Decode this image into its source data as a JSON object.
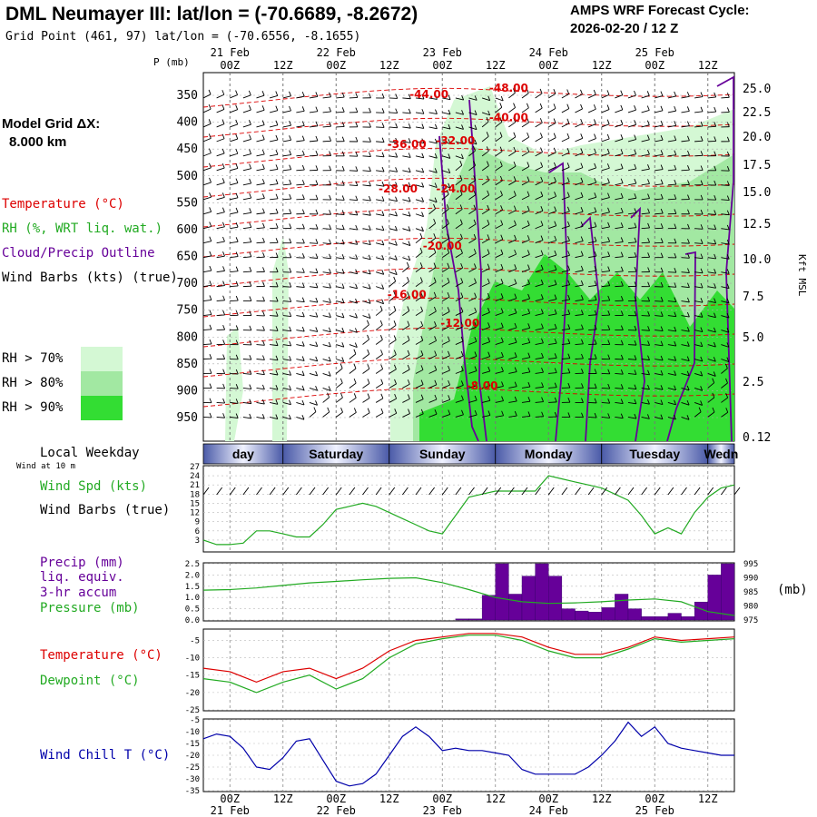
{
  "header": {
    "title": "DML Neumayer III:  lat/lon = (-70.6689, -8.2672)",
    "subtitle": "Grid Point (461, 97) lat/lon = (-70.6556, -8.1655)",
    "cycle_label": "AMPS WRF Forecast Cycle:",
    "cycle_value": "2026-02-20 / 12  Z"
  },
  "colors": {
    "temperature": "#dd0000",
    "rh": "#22aa22",
    "cloud": "#660099",
    "wind_chill": "#0000aa",
    "precip": "#660099",
    "rh70": "#d4f8d4",
    "rh80": "#a2e8a2",
    "rh90": "#33dd33"
  },
  "legend": {
    "model_grid": "Model Grid ΔX:",
    "model_grid_value": "8.000 km",
    "temperature": "Temperature (°C)",
    "rh": "RH (%, WRT liq. wat.)",
    "cloud": "Cloud/Precip Outline",
    "wind": "Wind Barbs (kts) (true)",
    "rh70": "RH > 70%",
    "rh80": "RH > 80%",
    "rh90": "RH > 90%",
    "local_weekday": "Local Weekday",
    "wind_10m": "Wind at 10 m",
    "wind_spd": "Wind Spd (kts)",
    "wind_barbs": "Wind Barbs (true)",
    "precip": "Precip (mm)",
    "liq_equiv": "liq. equiv.",
    "accum": "3-hr accum",
    "pressure": "Pressure (mb)",
    "temp2": "Temperature (°C)",
    "dewpoint": "Dewpoint (°C)",
    "wind_chill": "Wind Chill T (°C)",
    "pressure_unit": "(mb)"
  },
  "chart_data": [
    {
      "name": "upper-air cross-section",
      "type": "heatmap",
      "title": "DML Neumayer III:  lat/lon = (-70.6689, -8.2672)",
      "ylabel": "P (mb)",
      "ylabel_right": "Kft MSL",
      "time_range_hours": [
        -6,
        114
      ],
      "time_ticks": [
        "00Z",
        "12Z",
        "00Z",
        "12Z",
        "00Z",
        "12Z",
        "00Z",
        "12Z",
        "00Z",
        "12Z"
      ],
      "date_labels": [
        "21 Feb",
        "22 Feb",
        "23 Feb",
        "24 Feb",
        "25 Feb"
      ],
      "pressure_ticks": [
        "350",
        "400",
        "450",
        "500",
        "550",
        "600",
        "650",
        "700",
        "750",
        "800",
        "850",
        "900",
        "950"
      ],
      "height_ticks": [
        "25.0",
        "22.5",
        "20.0",
        "17.5",
        "15.0",
        "12.5",
        "10.0",
        "7.5",
        "5.0",
        "2.5",
        "0.12"
      ],
      "temperature_labels": [
        {
          "text": "-44.00",
          "t": 45,
          "p": 355
        },
        {
          "text": "-48.00",
          "t": 63,
          "p": 343
        },
        {
          "text": "-40.00",
          "t": 63,
          "p": 398
        },
        {
          "text": "-36.00",
          "t": 40,
          "p": 448
        },
        {
          "text": "-32.00",
          "t": 51,
          "p": 441
        },
        {
          "text": "-28.00",
          "t": 38,
          "p": 531
        },
        {
          "text": "-24.00",
          "t": 51,
          "p": 531
        },
        {
          "text": "-20.00",
          "t": 48,
          "p": 637
        },
        {
          "text": "-16.00",
          "t": 40,
          "p": 728
        },
        {
          "text": "-12.00",
          "t": 52,
          "p": 781
        },
        {
          "text": "-8.00",
          "t": 57,
          "p": 898
        }
      ]
    },
    {
      "name": "local weekday",
      "type": "table",
      "days": [
        "day",
        "Saturday",
        "Sunday",
        "Monday",
        "Tuesday",
        "Wedn"
      ]
    },
    {
      "name": "10 m wind speed",
      "type": "line",
      "ylabel": "Wind Spd (kts)",
      "ylim": [
        0,
        27
      ],
      "yticks": [
        "3",
        "6",
        "9",
        "12",
        "15",
        "18",
        "21",
        "24",
        "27"
      ],
      "x_hours": [
        -6,
        -3,
        0,
        3,
        6,
        9,
        12,
        15,
        18,
        21,
        24,
        27,
        30,
        33,
        36,
        39,
        42,
        45,
        48,
        51,
        54,
        57,
        60,
        63,
        66,
        69,
        72,
        75,
        78,
        81,
        84,
        87,
        90,
        93,
        96,
        99,
        102,
        105,
        108,
        111,
        114
      ],
      "values": [
        3,
        1.5,
        1.5,
        2,
        6,
        6,
        5,
        4,
        4,
        8,
        13,
        14,
        15,
        14,
        12,
        10,
        8,
        6,
        5,
        11,
        17,
        18,
        19,
        19,
        19,
        19,
        24,
        23,
        22,
        21,
        20,
        18,
        16,
        11,
        5,
        7,
        5,
        12,
        17,
        20,
        21
      ]
    },
    {
      "name": "precipitation and pressure",
      "type": "bar",
      "ylabel": "Precip (mm)",
      "ylim": [
        0,
        2.5
      ],
      "yticks": [
        "0.0",
        "0.5",
        "1.0",
        "1.5",
        "2.0",
        "2.5"
      ],
      "y2label": "(mb)",
      "y2lim": [
        975,
        995
      ],
      "y2ticks": [
        "975",
        "980",
        "985",
        "990",
        "995"
      ],
      "precip_bins": [
        {
          "t0": 51,
          "t1": 54,
          "value": 0.05
        },
        {
          "t0": 54,
          "t1": 57,
          "value": 0.05
        },
        {
          "t0": 57,
          "t1": 60,
          "value": 1.1
        },
        {
          "t0": 60,
          "t1": 63,
          "value": 2.5
        },
        {
          "t0": 63,
          "t1": 66,
          "value": 1.15
        },
        {
          "t0": 66,
          "t1": 69,
          "value": 1.95
        },
        {
          "t0": 69,
          "t1": 72,
          "value": 2.5
        },
        {
          "t0": 72,
          "t1": 75,
          "value": 1.95
        },
        {
          "t0": 75,
          "t1": 78,
          "value": 0.5
        },
        {
          "t0": 78,
          "t1": 81,
          "value": 0.4
        },
        {
          "t0": 81,
          "t1": 84,
          "value": 0.35
        },
        {
          "t0": 84,
          "t1": 87,
          "value": 0.55
        },
        {
          "t0": 87,
          "t1": 90,
          "value": 1.15
        },
        {
          "t0": 90,
          "t1": 93,
          "value": 0.5
        },
        {
          "t0": 93,
          "t1": 96,
          "value": 0.15
        },
        {
          "t0": 96,
          "t1": 99,
          "value": 0.15
        },
        {
          "t0": 99,
          "t1": 102,
          "value": 0.3
        },
        {
          "t0": 102,
          "t1": 105,
          "value": 0.15
        },
        {
          "t0": 105,
          "t1": 108,
          "value": 0.8
        },
        {
          "t0": 108,
          "t1": 111,
          "value": 2.0
        },
        {
          "t0": 111,
          "t1": 114,
          "value": 2.5
        }
      ],
      "pressure_x": [
        -6,
        0,
        6,
        12,
        18,
        24,
        30,
        36,
        42,
        48,
        54,
        60,
        66,
        72,
        78,
        84,
        90,
        96,
        102,
        108,
        114
      ],
      "pressure_values": [
        985.6,
        985.8,
        986.4,
        987.3,
        988.2,
        988.7,
        989.3,
        989.8,
        990.0,
        988.3,
        985.8,
        983.0,
        981.5,
        980.9,
        981.1,
        981.5,
        982.1,
        982.5,
        981.5,
        978.0,
        976.6
      ]
    },
    {
      "name": "temperature and dewpoint",
      "type": "line",
      "ylim": [
        -25,
        -2
      ],
      "yticks": [
        "-5",
        "-10",
        "-15",
        "-20",
        "-25"
      ],
      "x_hours": [
        -6,
        0,
        6,
        12,
        18,
        24,
        30,
        36,
        42,
        48,
        54,
        60,
        66,
        72,
        78,
        84,
        90,
        96,
        102,
        108,
        114
      ],
      "series": [
        {
          "name": "Temperature (°C)",
          "values": [
            -13,
            -14,
            -17,
            -14,
            -13,
            -16,
            -13,
            -8,
            -5,
            -4,
            -3,
            -3,
            -4,
            -7,
            -9,
            -9,
            -7,
            -4,
            -5,
            -4.5,
            -4
          ]
        },
        {
          "name": "Dewpoint (°C)",
          "values": [
            -16,
            -17,
            -20,
            -17,
            -15,
            -19,
            -16,
            -10,
            -6,
            -4.5,
            -3.5,
            -3.5,
            -5,
            -8,
            -10,
            -10,
            -7.5,
            -4.5,
            -5.5,
            -5,
            -4.5
          ]
        }
      ]
    },
    {
      "name": "wind chill",
      "type": "line",
      "ylim": [
        -35,
        -5
      ],
      "yticks": [
        "-5",
        "-10",
        "-15",
        "-20",
        "-25",
        "-30",
        "-35"
      ],
      "x_hours": [
        -6,
        -3,
        0,
        3,
        6,
        9,
        12,
        15,
        18,
        21,
        24,
        27,
        30,
        33,
        36,
        39,
        42,
        45,
        48,
        51,
        54,
        57,
        60,
        63,
        66,
        69,
        72,
        75,
        78,
        81,
        84,
        87,
        90,
        93,
        96,
        99,
        102,
        105,
        108,
        111,
        114
      ],
      "series": [
        {
          "name": "Wind Chill T (°C)",
          "values": [
            -13,
            -11,
            -12,
            -17,
            -25,
            -26,
            -21,
            -14,
            -13,
            -22,
            -31,
            -33,
            -32,
            -28,
            -20,
            -12,
            -8,
            -12,
            -18,
            -17,
            -18,
            -18,
            -19,
            -20,
            -26,
            -28,
            -28,
            -28,
            -28,
            -25,
            -20,
            -14,
            -6,
            -12,
            -8,
            -15,
            -17,
            -18,
            -19,
            -20,
            -20
          ]
        }
      ]
    }
  ]
}
